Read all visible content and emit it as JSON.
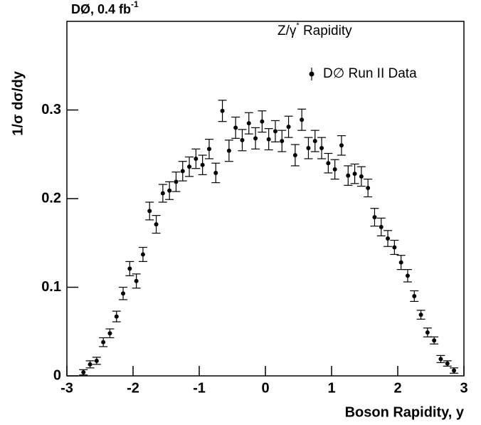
{
  "chart_data": {
    "type": "errorbar",
    "title": "DØ, 0.4 fb",
    "title_superscript": "-1",
    "legend_title": "Z/γ",
    "legend_title_superscript": "*",
    "legend_title_suffix": " Rapidity",
    "x_label": "Boson Rapidity, y",
    "y_label": "1/σ dσ/dy",
    "xlim": [
      -3,
      3
    ],
    "ylim": [
      0,
      0.4
    ],
    "xticks": [
      -3,
      -2,
      -1,
      0,
      1,
      2,
      3
    ],
    "yticks": [
      0,
      0.1,
      0.2,
      0.3
    ],
    "x": [
      -2.75,
      -2.65,
      -2.55,
      -2.45,
      -2.35,
      -2.25,
      -2.15,
      -2.05,
      -1.95,
      -1.85,
      -1.75,
      -1.65,
      -1.55,
      -1.45,
      -1.35,
      -1.25,
      -1.15,
      -1.05,
      -0.95,
      -0.85,
      -0.75,
      -0.65,
      -0.55,
      -0.45,
      -0.35,
      -0.25,
      -0.15,
      -0.05,
      0.05,
      0.15,
      0.25,
      0.35,
      0.45,
      0.55,
      0.65,
      0.75,
      0.85,
      0.95,
      1.05,
      1.15,
      1.25,
      1.35,
      1.45,
      1.55,
      1.65,
      1.75,
      1.85,
      1.95,
      2.05,
      2.15,
      2.25,
      2.35,
      2.45,
      2.55,
      2.65,
      2.75,
      2.85
    ],
    "series": [
      {
        "name": "D∅ Run II Data",
        "color": "#000000",
        "values": [
          0.004,
          0.013,
          0.017,
          0.038,
          0.048,
          0.067,
          0.093,
          0.121,
          0.107,
          0.137,
          0.186,
          0.171,
          0.206,
          0.209,
          0.219,
          0.231,
          0.236,
          0.245,
          0.238,
          0.256,
          0.229,
          0.299,
          0.254,
          0.28,
          0.266,
          0.285,
          0.268,
          0.287,
          0.267,
          0.276,
          0.265,
          0.281,
          0.249,
          0.289,
          0.257,
          0.265,
          0.257,
          0.24,
          0.233,
          0.26,
          0.226,
          0.228,
          0.225,
          0.212,
          0.179,
          0.168,
          0.155,
          0.145,
          0.128,
          0.113,
          0.09,
          0.069,
          0.049,
          0.04,
          0.019,
          0.014,
          0.006
        ],
        "errors": [
          0.003,
          0.004,
          0.004,
          0.005,
          0.005,
          0.006,
          0.007,
          0.008,
          0.008,
          0.008,
          0.01,
          0.01,
          0.01,
          0.01,
          0.011,
          0.011,
          0.011,
          0.011,
          0.011,
          0.011,
          0.011,
          0.012,
          0.012,
          0.012,
          0.012,
          0.012,
          0.012,
          0.012,
          0.012,
          0.012,
          0.012,
          0.012,
          0.012,
          0.012,
          0.012,
          0.012,
          0.012,
          0.011,
          0.011,
          0.011,
          0.011,
          0.011,
          0.011,
          0.01,
          0.01,
          0.01,
          0.009,
          0.008,
          0.008,
          0.007,
          0.006,
          0.005,
          0.005,
          0.004,
          0.004,
          0.003,
          0.003
        ]
      }
    ]
  }
}
